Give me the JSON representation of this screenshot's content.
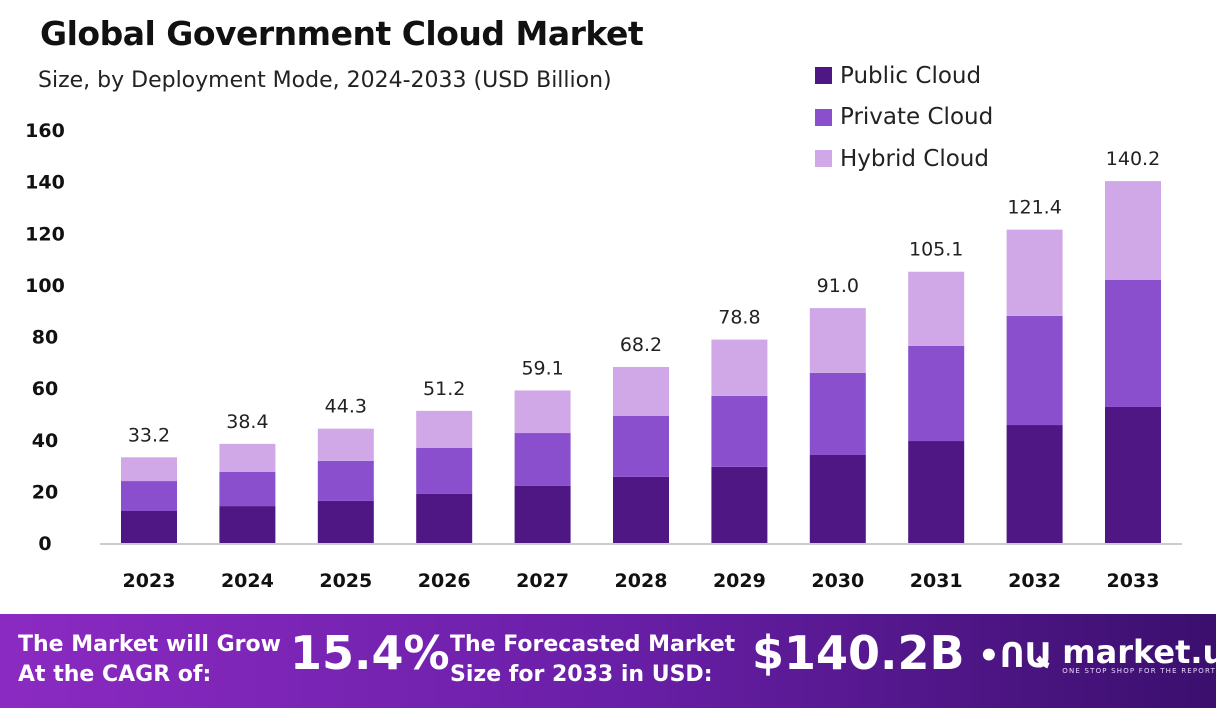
{
  "chart_data": {
    "type": "bar",
    "stacked": true,
    "title": "Global Government Cloud Market",
    "subtitle": "Size, by Deployment Mode, 2024-2033 (USD Billion)",
    "categories": [
      "2023",
      "2024",
      "2025",
      "2026",
      "2027",
      "2028",
      "2029",
      "2030",
      "2031",
      "2032",
      "2033"
    ],
    "series": [
      {
        "name": "Public Cloud",
        "color": "#4f1784",
        "values": [
          12.4,
          14.3,
          16.3,
          19.0,
          22.1,
          25.6,
          29.5,
          34.1,
          39.5,
          45.7,
          52.7
        ]
      },
      {
        "name": "Private Cloud",
        "color": "#8a4fcc",
        "values": [
          11.6,
          13.2,
          15.5,
          17.8,
          20.5,
          23.6,
          27.5,
          31.8,
          36.9,
          42.3,
          49.2
        ]
      },
      {
        "name": "Hybrid Cloud",
        "color": "#d0a8e8",
        "values": [
          9.2,
          10.9,
          12.5,
          14.4,
          16.5,
          19.0,
          21.8,
          25.1,
          28.7,
          33.4,
          38.3
        ]
      }
    ],
    "totals": [
      "33.2",
      "38.4",
      "44.3",
      "51.2",
      "59.1",
      "68.2",
      "78.8",
      "91.0",
      "105.1",
      "121.4",
      "140.2"
    ],
    "ylim": [
      0,
      160
    ],
    "yticks": [
      "0",
      "20",
      "40",
      "60",
      "80",
      "100",
      "120",
      "140",
      "160"
    ],
    "grid": false,
    "legend": "top-right"
  },
  "footer": {
    "cagr_label_1": "The Market will Grow",
    "cagr_label_2": "At the CAGR of:",
    "cagr_value": "15.4%",
    "forecast_label_1": "The Forecasted Market",
    "forecast_label_2": "Size for 2033 in USD:",
    "forecast_value": "$140.2B",
    "logo_name": "market.us",
    "logo_tagline": "ONE STOP SHOP FOR THE REPORTS"
  }
}
